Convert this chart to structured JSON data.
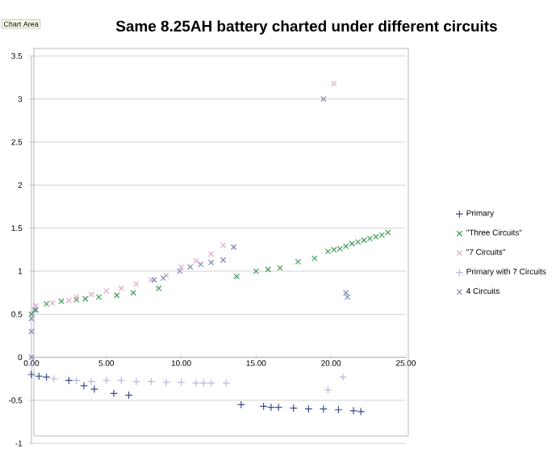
{
  "chart_data": {
    "type": "scatter",
    "title": "Same 8.25AH battery charted under different circuits",
    "annotations": [
      "Chart Area"
    ],
    "xlim": [
      0,
      25
    ],
    "ylim": [
      -1,
      3.5
    ],
    "xticks": [
      {
        "value": 0,
        "label": "0.00"
      },
      {
        "value": 5,
        "label": "5.00"
      },
      {
        "value": 10,
        "label": "10.00"
      },
      {
        "value": 15,
        "label": "15.00"
      },
      {
        "value": 20,
        "label": "20.00"
      },
      {
        "value": 25,
        "label": "25.00"
      }
    ],
    "yticks": [
      -1,
      -0.5,
      0,
      0.5,
      1,
      1.5,
      2,
      2.5,
      3,
      3.5
    ],
    "grid": "y",
    "legend": "right",
    "series": [
      {
        "name": "Primary",
        "color": "#3b4a8c",
        "marker": "plus",
        "x": [
          0,
          0.5,
          1,
          2.5,
          3.5,
          4.2,
          5.5,
          6.5,
          14,
          15.5,
          16,
          16.5,
          17.5,
          18.5,
          19.5,
          20.5,
          21.5,
          22
        ],
        "values": [
          -0.2,
          -0.22,
          -0.23,
          -0.27,
          -0.33,
          -0.37,
          -0.42,
          -0.44,
          -0.55,
          -0.57,
          -0.58,
          -0.58,
          -0.59,
          -0.6,
          -0.6,
          -0.61,
          -0.62,
          -0.63
        ]
      },
      {
        "name": "\"Three Circuits\"",
        "color": "#3f9a52",
        "marker": "cross",
        "x": [
          0,
          0.3,
          1,
          2,
          3,
          3.6,
          4.5,
          5.7,
          6.8,
          8.5,
          13.7,
          15,
          15.8,
          16.6,
          17.8,
          18.9,
          19.8,
          20.2,
          20.6,
          21,
          21.4,
          21.8,
          22.2,
          22.6,
          23,
          23.4,
          23.8
        ],
        "values": [
          0.5,
          0.55,
          0.62,
          0.65,
          0.67,
          0.68,
          0.7,
          0.72,
          0.75,
          0.8,
          0.94,
          1.0,
          1.02,
          1.04,
          1.11,
          1.15,
          1.23,
          1.25,
          1.26,
          1.29,
          1.32,
          1.34,
          1.36,
          1.38,
          1.4,
          1.42,
          1.45
        ]
      },
      {
        "name": "\"7 Circuits\"",
        "color": "#e2a6cc",
        "marker": "cross",
        "x": [
          0.3,
          1.4,
          2.5,
          3,
          4,
          5,
          6,
          7,
          8,
          9,
          10,
          11,
          12,
          12.8,
          20.2
        ],
        "values": [
          0.6,
          0.63,
          0.66,
          0.7,
          0.73,
          0.77,
          0.8,
          0.85,
          0.9,
          0.95,
          1.05,
          1.12,
          1.2,
          1.3,
          3.18
        ]
      },
      {
        "name": "Primary with 7 Circuits",
        "color": "#b9b9de",
        "marker": "plus",
        "x": [
          1.5,
          3,
          4,
          5,
          6,
          7,
          8,
          9,
          10,
          11,
          11.5,
          12,
          13,
          19.8,
          20.8
        ],
        "values": [
          -0.25,
          -0.27,
          -0.28,
          -0.27,
          -0.27,
          -0.28,
          -0.28,
          -0.29,
          -0.29,
          -0.3,
          -0.3,
          -0.3,
          -0.3,
          -0.38,
          -0.23
        ]
      },
      {
        "name": "4 Circuits",
        "color": "#7a88b8",
        "marker": "cross",
        "x": [
          0,
          0,
          0,
          0.2,
          8.2,
          8.8,
          9.9,
          10.6,
          11.3,
          12,
          12.8,
          13.5,
          19.5,
          21,
          21.1
        ],
        "values": [
          0,
          0.3,
          0.45,
          0.55,
          0.9,
          0.92,
          1.0,
          1.05,
          1.08,
          1.1,
          1.13,
          1.28,
          3.0,
          0.75,
          0.7
        ]
      }
    ]
  }
}
